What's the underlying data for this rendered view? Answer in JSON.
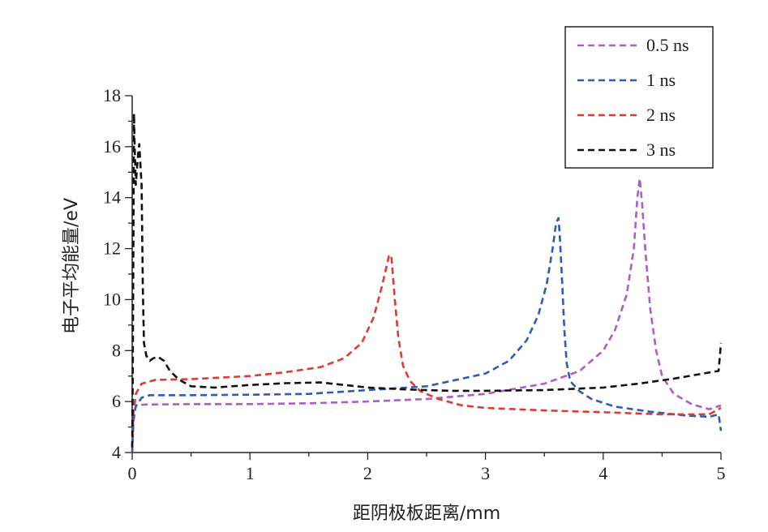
{
  "chart_data": {
    "type": "line",
    "xlabel": "距阴极板距离/mm",
    "ylabel": "电子平均能量/eV",
    "xlim": [
      0,
      5
    ],
    "ylim": [
      4,
      18
    ],
    "x_ticks": [
      "0",
      "1",
      "2",
      "3",
      "4",
      "5"
    ],
    "y_ticks": [
      "4",
      "6",
      "8",
      "10",
      "12",
      "14",
      "16",
      "18"
    ],
    "grid": false,
    "legend_position": "top-right",
    "series": [
      {
        "name": "0.5 ns",
        "color": "#b05cc8",
        "points": [
          [
            0,
            4
          ],
          [
            0.01,
            5.2
          ],
          [
            0.03,
            5.85
          ],
          [
            0.1,
            5.88
          ],
          [
            0.5,
            5.9
          ],
          [
            1,
            5.9
          ],
          [
            1.5,
            5.93
          ],
          [
            2,
            6.0
          ],
          [
            2.5,
            6.1
          ],
          [
            3,
            6.3
          ],
          [
            3.5,
            6.7
          ],
          [
            3.8,
            7.2
          ],
          [
            4.0,
            8.0
          ],
          [
            4.1,
            8.8
          ],
          [
            4.2,
            10.2
          ],
          [
            4.26,
            12.0
          ],
          [
            4.29,
            14.0
          ],
          [
            4.31,
            14.75
          ],
          [
            4.33,
            13.8
          ],
          [
            4.36,
            11.8
          ],
          [
            4.4,
            9.6
          ],
          [
            4.45,
            8.0
          ],
          [
            4.5,
            7.0
          ],
          [
            4.6,
            6.3
          ],
          [
            4.75,
            5.9
          ],
          [
            4.9,
            5.7
          ],
          [
            5,
            5.85
          ]
        ]
      },
      {
        "name": "1 ns",
        "color": "#2b5cb8",
        "points": [
          [
            0,
            4
          ],
          [
            0.01,
            5.3
          ],
          [
            0.03,
            5.8
          ],
          [
            0.08,
            6.15
          ],
          [
            0.15,
            6.25
          ],
          [
            0.5,
            6.25
          ],
          [
            1,
            6.27
          ],
          [
            1.5,
            6.3
          ],
          [
            2,
            6.45
          ],
          [
            2.5,
            6.6
          ],
          [
            3,
            7.1
          ],
          [
            3.2,
            7.6
          ],
          [
            3.35,
            8.4
          ],
          [
            3.45,
            9.4
          ],
          [
            3.52,
            10.6
          ],
          [
            3.57,
            12.0
          ],
          [
            3.6,
            13.0
          ],
          [
            3.62,
            13.2
          ],
          [
            3.63,
            12.6
          ],
          [
            3.65,
            10.8
          ],
          [
            3.67,
            8.8
          ],
          [
            3.69,
            7.5
          ],
          [
            3.72,
            6.8
          ],
          [
            3.8,
            6.4
          ],
          [
            3.9,
            6.1
          ],
          [
            4.1,
            5.8
          ],
          [
            4.4,
            5.6
          ],
          [
            4.7,
            5.45
          ],
          [
            4.9,
            5.4
          ],
          [
            4.98,
            5.5
          ],
          [
            5,
            4.85
          ]
        ]
      },
      {
        "name": "2 ns",
        "color": "#e03a2f",
        "points": [
          [
            0,
            4.2
          ],
          [
            0.01,
            5.5
          ],
          [
            0.03,
            6.3
          ],
          [
            0.08,
            6.7
          ],
          [
            0.2,
            6.85
          ],
          [
            0.5,
            6.88
          ],
          [
            1,
            7.0
          ],
          [
            1.3,
            7.15
          ],
          [
            1.6,
            7.35
          ],
          [
            1.8,
            7.7
          ],
          [
            1.95,
            8.3
          ],
          [
            2.05,
            9.3
          ],
          [
            2.12,
            10.5
          ],
          [
            2.16,
            11.3
          ],
          [
            2.18,
            11.7
          ],
          [
            2.2,
            11.75
          ],
          [
            2.21,
            11.2
          ],
          [
            2.23,
            10.0
          ],
          [
            2.26,
            8.5
          ],
          [
            2.3,
            7.4
          ],
          [
            2.36,
            6.8
          ],
          [
            2.45,
            6.4
          ],
          [
            2.6,
            6.1
          ],
          [
            2.8,
            5.85
          ],
          [
            3,
            5.75
          ],
          [
            3.5,
            5.65
          ],
          [
            4,
            5.58
          ],
          [
            4.5,
            5.5
          ],
          [
            4.9,
            5.5
          ],
          [
            5,
            5.75
          ]
        ]
      },
      {
        "name": "3 ns",
        "color": "#111111",
        "points": [
          [
            0,
            4.2
          ],
          [
            0.005,
            7.0
          ],
          [
            0.01,
            12.0
          ],
          [
            0.015,
            17.3
          ],
          [
            0.02,
            16.2
          ],
          [
            0.03,
            14.5
          ],
          [
            0.05,
            15.7
          ],
          [
            0.06,
            16.1
          ],
          [
            0.08,
            14.5
          ],
          [
            0.09,
            10.5
          ],
          [
            0.1,
            8.3
          ],
          [
            0.12,
            7.8
          ],
          [
            0.15,
            7.6
          ],
          [
            0.18,
            7.7
          ],
          [
            0.22,
            7.75
          ],
          [
            0.27,
            7.6
          ],
          [
            0.32,
            7.2
          ],
          [
            0.4,
            6.85
          ],
          [
            0.5,
            6.6
          ],
          [
            0.7,
            6.55
          ],
          [
            1,
            6.65
          ],
          [
            1.3,
            6.72
          ],
          [
            1.6,
            6.75
          ],
          [
            1.8,
            6.65
          ],
          [
            2,
            6.55
          ],
          [
            2.3,
            6.48
          ],
          [
            2.7,
            6.42
          ],
          [
            3,
            6.42
          ],
          [
            3.5,
            6.45
          ],
          [
            4,
            6.55
          ],
          [
            4.3,
            6.7
          ],
          [
            4.6,
            6.9
          ],
          [
            4.85,
            7.1
          ],
          [
            4.98,
            7.2
          ],
          [
            5,
            8.3
          ]
        ]
      }
    ]
  }
}
